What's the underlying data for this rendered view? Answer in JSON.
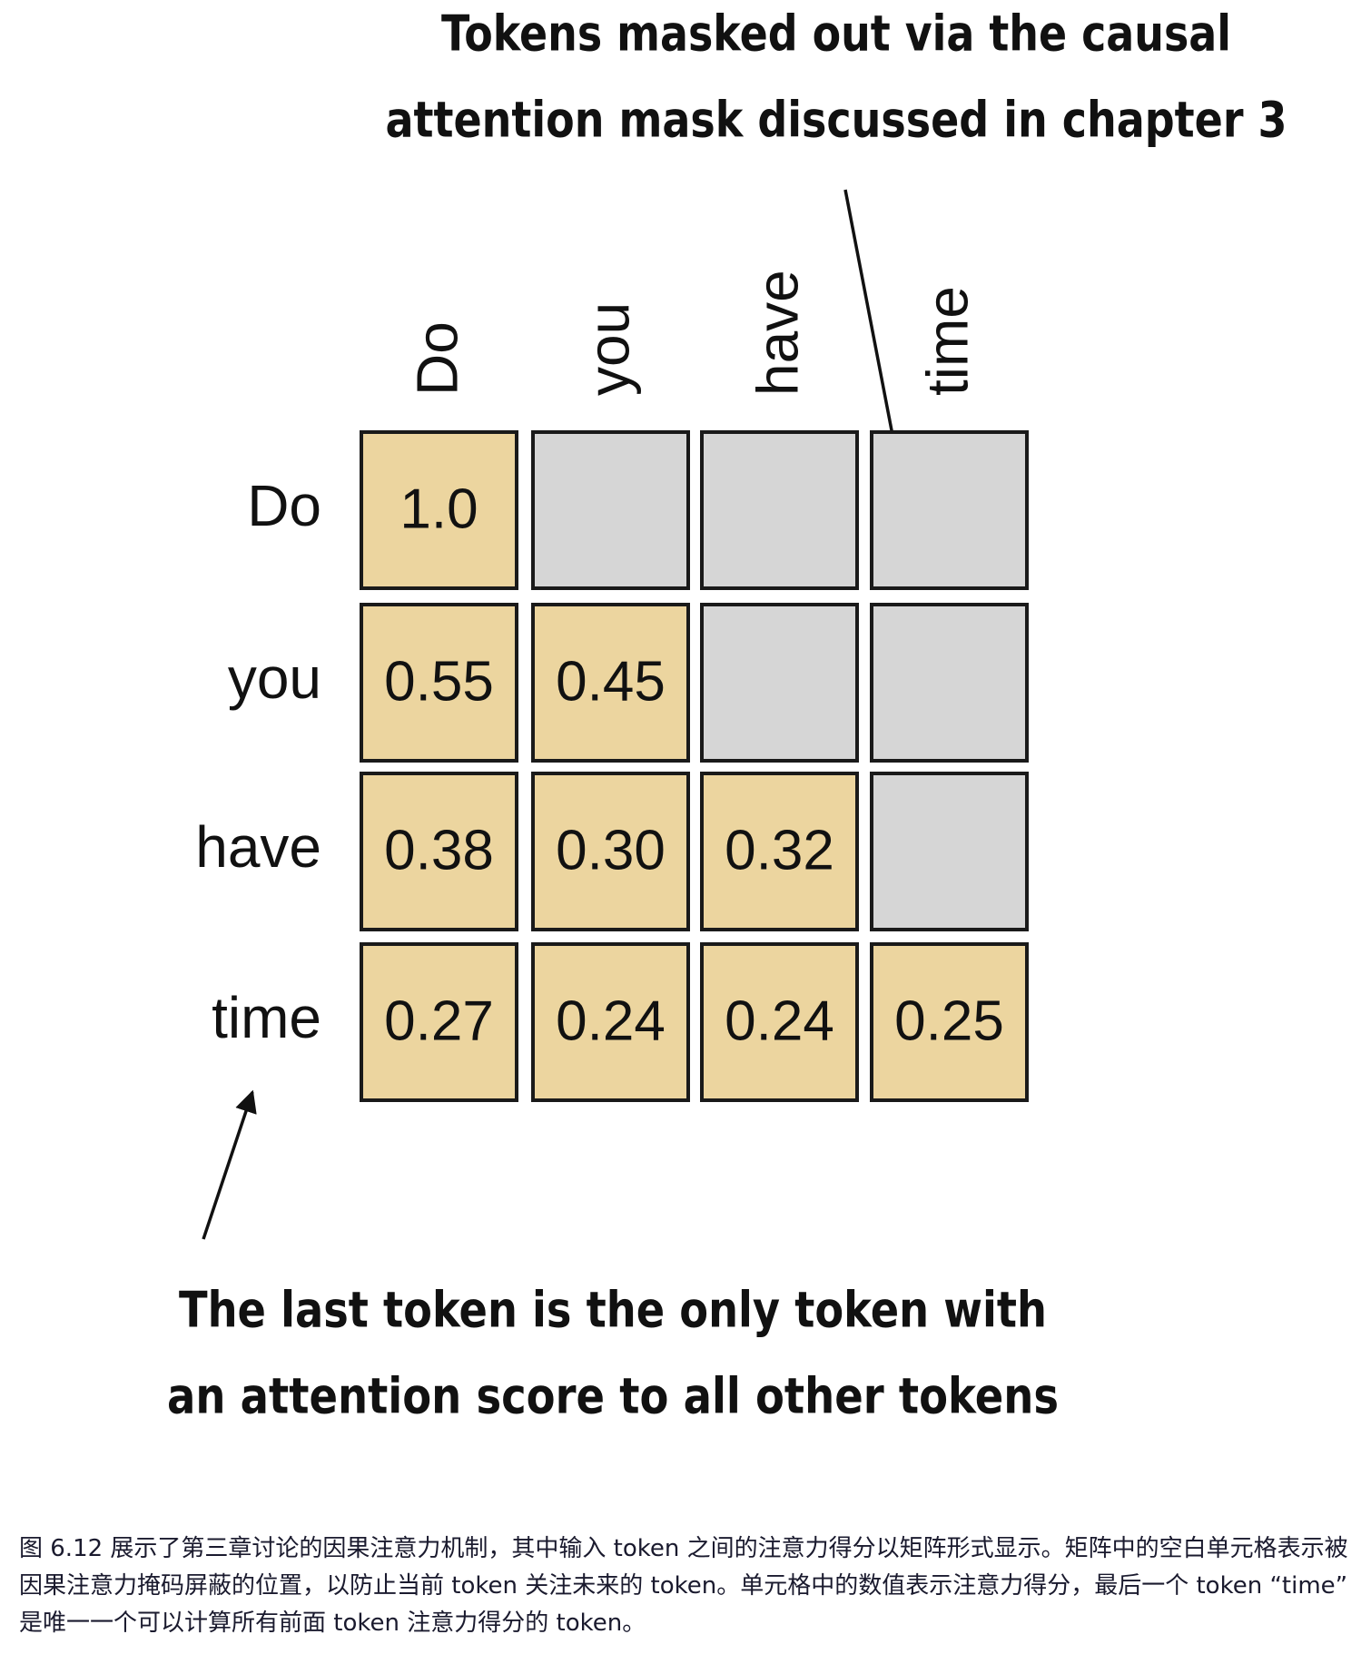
{
  "annotations": {
    "top": [
      "Tokens masked out via the causal",
      "attention mask discussed in chapter 3"
    ],
    "bottom": [
      "The last token is the only token with",
      "an attention score to all other tokens"
    ]
  },
  "tokens": [
    "Do",
    "you",
    "have",
    "time"
  ],
  "matrix": [
    [
      "1.0",
      null,
      null,
      null
    ],
    [
      "0.55",
      "0.45",
      null,
      null
    ],
    [
      "0.38",
      "0.30",
      "0.32",
      null
    ],
    [
      "0.27",
      "0.24",
      "0.24",
      "0.25"
    ]
  ],
  "caption": "图 6.12 展示了第三章讨论的因果注意力机制，其中输入 token 之间的注意力得分以矩阵形式显示。矩阵中的空白单元格表示被因果注意力掩码屏蔽的位置，以防止当前 token 关注未来的 token。单元格中的数值表示注意力得分，最后一个 token “time” 是唯一一个可以计算所有前面 token 注意力得分的 token。"
}
